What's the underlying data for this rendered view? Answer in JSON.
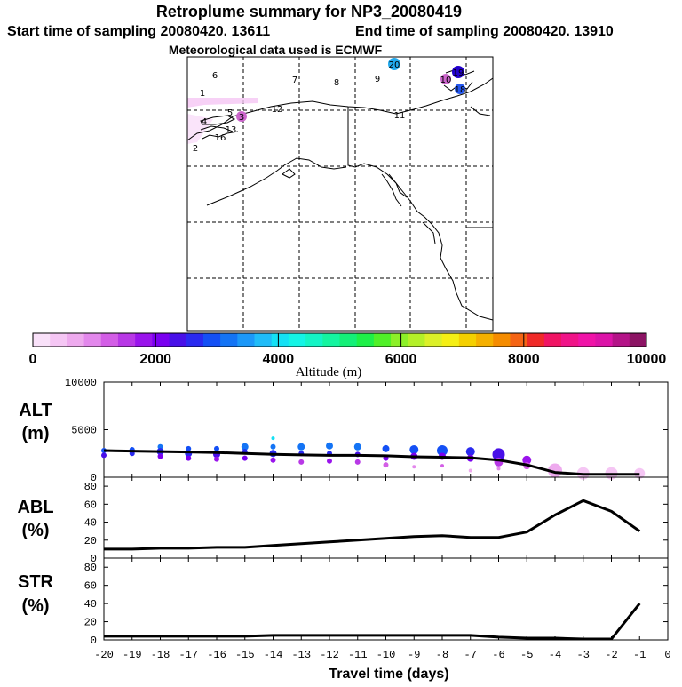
{
  "header": {
    "title": "Retroplume summary for NP3_20080419",
    "start_label": "Start time of sampling 20080420. 13611",
    "end_label": "End time of sampling 20080420. 13910",
    "met_label": "Meteorological data used is ECMWF"
  },
  "map": {
    "markers": [
      {
        "label": "1",
        "color": "#ffffff"
      },
      {
        "label": "2",
        "color": "#ffffff"
      },
      {
        "label": "3",
        "color": "#cc66cc"
      },
      {
        "label": "4",
        "color": "#ffffff"
      },
      {
        "label": "5",
        "color": "#ffffff"
      },
      {
        "label": "6",
        "color": "#ffffff"
      },
      {
        "label": "7",
        "color": "#ffffff"
      },
      {
        "label": "8",
        "color": "#ffffff"
      },
      {
        "label": "9",
        "color": "#ffffff"
      },
      {
        "label": "10",
        "color": "#cc66cc"
      },
      {
        "label": "11",
        "color": "#cc66cc"
      },
      {
        "label": "12",
        "color": "#ffffff"
      },
      {
        "label": "13",
        "color": "#ffffff"
      },
      {
        "label": "16",
        "color": "#ffffff"
      },
      {
        "label": "18",
        "color": "#2255ee"
      },
      {
        "label": "19",
        "color": "#2200cc"
      },
      {
        "label": "20",
        "color": "#22aaee"
      }
    ]
  },
  "colorbar": {
    "title": "Altitude (m)",
    "ticks": [
      "0",
      "2000",
      "4000",
      "6000",
      "8000",
      "10000"
    ],
    "colors": [
      "#f9e1f9",
      "#f5c6f4",
      "#eeaaee",
      "#e388ec",
      "#d35ee6",
      "#b838e6",
      "#9a14ec",
      "#7a00f0",
      "#4810e8",
      "#2a2af0",
      "#1450f5",
      "#1474f5",
      "#1c98f8",
      "#20bcf8",
      "#14e1f5",
      "#14f5e6",
      "#14f5c6",
      "#14f5a0",
      "#14f078",
      "#1ef048",
      "#50f028",
      "#8cf028",
      "#b4f028",
      "#dcf028",
      "#f5ef14",
      "#f5d000",
      "#f5b000",
      "#f58c00",
      "#f56414",
      "#f02a28",
      "#f01464",
      "#f01488",
      "#f014a8",
      "#dc14a8",
      "#b41488",
      "#8c1464"
    ]
  },
  "chart_data": [
    {
      "type": "line",
      "panel": "ALT",
      "title": "ALT",
      "ylabel": "(m)",
      "ylim": [
        0,
        10000
      ],
      "yticks": [
        "0",
        "5000",
        "10000"
      ],
      "x": [
        -20,
        -19,
        -18,
        -17,
        -16,
        -15,
        -14,
        -13,
        -12,
        -11,
        -10,
        -9,
        -8,
        -7,
        -6,
        -5,
        -4,
        -3,
        -2,
        -1
      ],
      "values": [
        2800,
        2750,
        2700,
        2650,
        2600,
        2500,
        2400,
        2350,
        2300,
        2300,
        2250,
        2150,
        2100,
        2050,
        1800,
        1300,
        500,
        300,
        300,
        300
      ],
      "points": [
        {
          "x": -20,
          "y": 2800,
          "size": 3
        },
        {
          "x": -20,
          "y": 2300,
          "size": 3
        },
        {
          "x": -19,
          "y": 2900,
          "size": 3
        },
        {
          "x": -19,
          "y": 2500,
          "size": 3
        },
        {
          "x": -18,
          "y": 3200,
          "size": 3
        },
        {
          "x": -18,
          "y": 2700,
          "size": 4
        },
        {
          "x": -18,
          "y": 2200,
          "size": 3
        },
        {
          "x": -17,
          "y": 3000,
          "size": 3
        },
        {
          "x": -17,
          "y": 2500,
          "size": 4
        },
        {
          "x": -17,
          "y": 2000,
          "size": 3
        },
        {
          "x": -16,
          "y": 3000,
          "size": 3
        },
        {
          "x": -16,
          "y": 2400,
          "size": 4
        },
        {
          "x": -16,
          "y": 1900,
          "size": 3
        },
        {
          "x": -15,
          "y": 3200,
          "size": 4
        },
        {
          "x": -15,
          "y": 2700,
          "size": 3
        },
        {
          "x": -15,
          "y": 2000,
          "size": 3
        },
        {
          "x": -14,
          "y": 4100,
          "size": 2
        },
        {
          "x": -14,
          "y": 3200,
          "size": 3
        },
        {
          "x": -14,
          "y": 2500,
          "size": 4
        },
        {
          "x": -14,
          "y": 1800,
          "size": 3
        },
        {
          "x": -13,
          "y": 3200,
          "size": 4
        },
        {
          "x": -13,
          "y": 2500,
          "size": 3
        },
        {
          "x": -13,
          "y": 1600,
          "size": 3
        },
        {
          "x": -12,
          "y": 3300,
          "size": 4
        },
        {
          "x": -12,
          "y": 2500,
          "size": 3
        },
        {
          "x": -12,
          "y": 1700,
          "size": 3
        },
        {
          "x": -11,
          "y": 3200,
          "size": 4
        },
        {
          "x": -11,
          "y": 2400,
          "size": 3
        },
        {
          "x": -11,
          "y": 1600,
          "size": 3
        },
        {
          "x": -10,
          "y": 3000,
          "size": 4
        },
        {
          "x": -10,
          "y": 2000,
          "size": 3
        },
        {
          "x": -10,
          "y": 1300,
          "size": 3
        },
        {
          "x": -9,
          "y": 2900,
          "size": 5
        },
        {
          "x": -9,
          "y": 2200,
          "size": 4
        },
        {
          "x": -9,
          "y": 1100,
          "size": 2
        },
        {
          "x": -8,
          "y": 2800,
          "size": 6
        },
        {
          "x": -8,
          "y": 2200,
          "size": 4
        },
        {
          "x": -8,
          "y": 1200,
          "size": 2
        },
        {
          "x": -7,
          "y": 2700,
          "size": 5
        },
        {
          "x": -7,
          "y": 2000,
          "size": 4
        },
        {
          "x": -7,
          "y": 700,
          "size": 2
        },
        {
          "x": -6,
          "y": 2400,
          "size": 7
        },
        {
          "x": -6,
          "y": 1600,
          "size": 5
        },
        {
          "x": -6,
          "y": 900,
          "size": 2
        },
        {
          "x": -5,
          "y": 1800,
          "size": 5
        },
        {
          "x": -5,
          "y": 1200,
          "size": 4
        },
        {
          "x": -4,
          "y": 700,
          "size": 8
        },
        {
          "x": -3,
          "y": 400,
          "size": 7
        },
        {
          "x": -2,
          "y": 400,
          "size": 7
        },
        {
          "x": -1,
          "y": 400,
          "size": 6
        }
      ]
    },
    {
      "type": "line",
      "panel": "ABL",
      "title": "ABL",
      "ylabel": "(%)",
      "ylim": [
        0,
        90
      ],
      "yticks": [
        "0",
        "20",
        "40",
        "60",
        "80"
      ],
      "x": [
        -20,
        -19,
        -18,
        -17,
        -16,
        -15,
        -14,
        -13,
        -12,
        -11,
        -10,
        -9,
        -8,
        -7,
        -6,
        -5,
        -4,
        -3,
        -2,
        -1
      ],
      "values": [
        10,
        10,
        11,
        11,
        12,
        12,
        14,
        16,
        18,
        20,
        22,
        24,
        25,
        23,
        23,
        29,
        48,
        64,
        52,
        30
      ]
    },
    {
      "type": "line",
      "panel": "STR",
      "title": "STR",
      "ylabel": "(%)",
      "ylim": [
        0,
        90
      ],
      "yticks": [
        "0",
        "20",
        "40",
        "60",
        "80"
      ],
      "x": [
        -20,
        -19,
        -18,
        -17,
        -16,
        -15,
        -14,
        -13,
        -12,
        -11,
        -10,
        -9,
        -8,
        -7,
        -6,
        -5,
        -4,
        -3,
        -2,
        -1
      ],
      "values": [
        4,
        4,
        4,
        4,
        4,
        4,
        5,
        5,
        5,
        5,
        5,
        5,
        5,
        5,
        3,
        2,
        2,
        1,
        1,
        40
      ],
      "xlabel": "Travel time (days)",
      "xticks": [
        "-20",
        "-19",
        "-18",
        "-17",
        "-16",
        "-15",
        "-14",
        "-13",
        "-12",
        "-11",
        "-10",
        "-9",
        "-8",
        "-7",
        "-6",
        "-5",
        "-4",
        "-3",
        "-2",
        "-1",
        "0"
      ],
      "xlim": [
        -20,
        0
      ]
    }
  ]
}
